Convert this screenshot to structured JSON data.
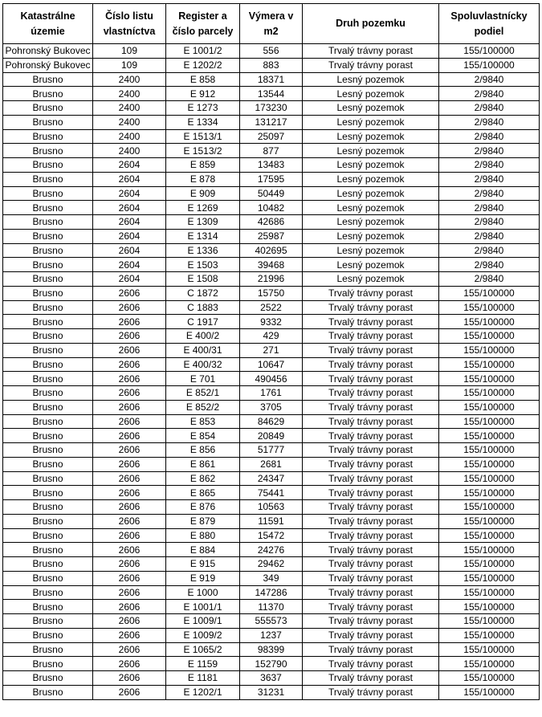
{
  "table": {
    "headers": [
      [
        "Katastrálne",
        "územie"
      ],
      [
        "Číslo listu",
        "vlastníctva"
      ],
      [
        "Register a",
        "číslo parcely"
      ],
      [
        "Výmera v",
        "m2"
      ],
      [
        "Druh pozemku",
        ""
      ],
      [
        "Spoluvlastnícky",
        "podiel"
      ]
    ],
    "rows": [
      [
        "Pohronský Bukovec",
        "109",
        "E 1001/2",
        "556",
        "Trvalý trávny porast",
        "155/100000"
      ],
      [
        "Pohronský Bukovec",
        "109",
        "E 1202/2",
        "883",
        "Trvalý trávny porast",
        "155/100000"
      ],
      [
        "Brusno",
        "2400",
        "E 858",
        "18371",
        "Lesný pozemok",
        "2/9840"
      ],
      [
        "Brusno",
        "2400",
        "E 912",
        "13544",
        "Lesný pozemok",
        "2/9840"
      ],
      [
        "Brusno",
        "2400",
        "E 1273",
        "173230",
        "Lesný pozemok",
        "2/9840"
      ],
      [
        "Brusno",
        "2400",
        "E 1334",
        "131217",
        "Lesný pozemok",
        "2/9840"
      ],
      [
        "Brusno",
        "2400",
        "E 1513/1",
        "25097",
        "Lesný pozemok",
        "2/9840"
      ],
      [
        "Brusno",
        "2400",
        "E 1513/2",
        "877",
        "Lesný pozemok",
        "2/9840"
      ],
      [
        "Brusno",
        "2604",
        "E 859",
        "13483",
        "Lesný pozemok",
        "2/9840"
      ],
      [
        "Brusno",
        "2604",
        "E 878",
        "17595",
        "Lesný pozemok",
        "2/9840"
      ],
      [
        "Brusno",
        "2604",
        "E 909",
        "50449",
        "Lesný pozemok",
        "2/9840"
      ],
      [
        "Brusno",
        "2604",
        "E 1269",
        "10482",
        "Lesný pozemok",
        "2/9840"
      ],
      [
        "Brusno",
        "2604",
        "E 1309",
        "42686",
        "Lesný pozemok",
        "2/9840"
      ],
      [
        "Brusno",
        "2604",
        "E 1314",
        "25987",
        "Lesný pozemok",
        "2/9840"
      ],
      [
        "Brusno",
        "2604",
        "E 1336",
        "402695",
        "Lesný pozemok",
        "2/9840"
      ],
      [
        "Brusno",
        "2604",
        "E 1503",
        "39468",
        "Lesný pozemok",
        "2/9840"
      ],
      [
        "Brusno",
        "2604",
        "E 1508",
        "21996",
        "Lesný pozemok",
        "2/9840"
      ],
      [
        "Brusno",
        "2606",
        "C 1872",
        "15750",
        "Trvalý trávny porast",
        "155/100000"
      ],
      [
        "Brusno",
        "2606",
        "C 1883",
        "2522",
        "Trvalý trávny porast",
        "155/100000"
      ],
      [
        "Brusno",
        "2606",
        "C 1917",
        "9332",
        "Trvalý trávny porast",
        "155/100000"
      ],
      [
        "Brusno",
        "2606",
        "E 400/2",
        "429",
        "Trvalý trávny porast",
        "155/100000"
      ],
      [
        "Brusno",
        "2606",
        "E 400/31",
        "271",
        "Trvalý trávny porast",
        "155/100000"
      ],
      [
        "Brusno",
        "2606",
        "E 400/32",
        "10647",
        "Trvalý trávny porast",
        "155/100000"
      ],
      [
        "Brusno",
        "2606",
        "E 701",
        "490456",
        "Trvalý trávny porast",
        "155/100000"
      ],
      [
        "Brusno",
        "2606",
        "E 852/1",
        "1761",
        "Trvalý trávny porast",
        "155/100000"
      ],
      [
        "Brusno",
        "2606",
        "E 852/2",
        "3705",
        "Trvalý trávny porast",
        "155/100000"
      ],
      [
        "Brusno",
        "2606",
        "E 853",
        "84629",
        "Trvalý trávny porast",
        "155/100000"
      ],
      [
        "Brusno",
        "2606",
        "E 854",
        "20849",
        "Trvalý trávny porast",
        "155/100000"
      ],
      [
        "Brusno",
        "2606",
        "E 856",
        "51777",
        "Trvalý trávny porast",
        "155/100000"
      ],
      [
        "Brusno",
        "2606",
        "E 861",
        "2681",
        "Trvalý trávny porast",
        "155/100000"
      ],
      [
        "Brusno",
        "2606",
        "E 862",
        "24347",
        "Trvalý trávny porast",
        "155/100000"
      ],
      [
        "Brusno",
        "2606",
        "E 865",
        "75441",
        "Trvalý trávny porast",
        "155/100000"
      ],
      [
        "Brusno",
        "2606",
        "E 876",
        "10563",
        "Trvalý trávny porast",
        "155/100000"
      ],
      [
        "Brusno",
        "2606",
        "E 879",
        "11591",
        "Trvalý trávny porast",
        "155/100000"
      ],
      [
        "Brusno",
        "2606",
        "E 880",
        "15472",
        "Trvalý trávny porast",
        "155/100000"
      ],
      [
        "Brusno",
        "2606",
        "E 884",
        "24276",
        "Trvalý trávny porast",
        "155/100000"
      ],
      [
        "Brusno",
        "2606",
        "E 915",
        "29462",
        "Trvalý trávny porast",
        "155/100000"
      ],
      [
        "Brusno",
        "2606",
        "E 919",
        "349",
        "Trvalý trávny porast",
        "155/100000"
      ],
      [
        "Brusno",
        "2606",
        "E 1000",
        "147286",
        "Trvalý trávny porast",
        "155/100000"
      ],
      [
        "Brusno",
        "2606",
        "E 1001/1",
        "11370",
        "Trvalý trávny porast",
        "155/100000"
      ],
      [
        "Brusno",
        "2606",
        "E 1009/1",
        "555573",
        "Trvalý trávny porast",
        "155/100000"
      ],
      [
        "Brusno",
        "2606",
        "E 1009/2",
        "1237",
        "Trvalý trávny porast",
        "155/100000"
      ],
      [
        "Brusno",
        "2606",
        "E 1065/2",
        "98399",
        "Trvalý trávny porast",
        "155/100000"
      ],
      [
        "Brusno",
        "2606",
        "E 1159",
        "152790",
        "Trvalý trávny porast",
        "155/100000"
      ],
      [
        "Brusno",
        "2606",
        "E 1181",
        "3637",
        "Trvalý trávny porast",
        "155/100000"
      ],
      [
        "Brusno",
        "2606",
        "E 1202/1",
        "31231",
        "Trvalý trávny porast",
        "155/100000"
      ]
    ]
  }
}
